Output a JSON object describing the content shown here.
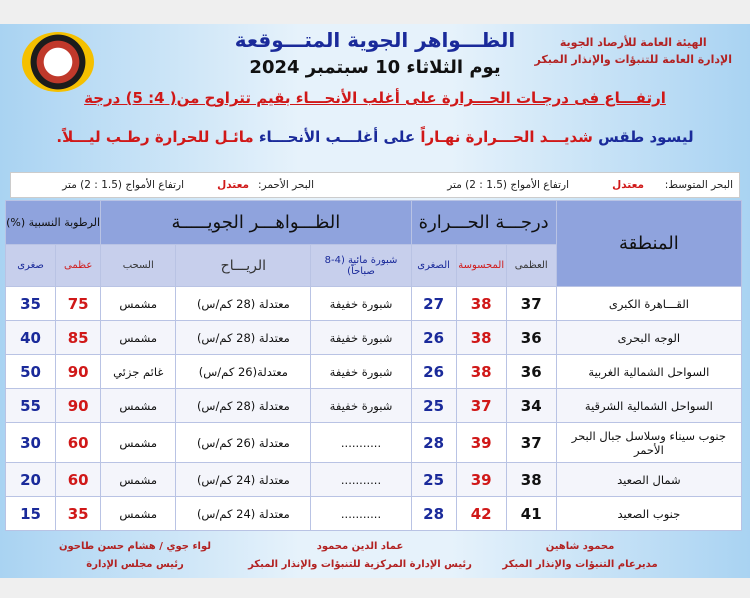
{
  "header": {
    "org_line1": "الهيئة العامة للأرصاد الجوية",
    "org_line2": "الإدارة العامة للتنبؤات والإنذار المبكر",
    "title": "الظـــواهر الجوية المتـــوقعة",
    "date": "يوم الثلاثاء 10 سبتمبر 2024",
    "headline": "ارتفـــاع فى درجـات الحـــرارة على أغلب الأنحـــاء بقيم تتراوح من( 4: 5) درجة",
    "summary_a": "ليسود طقس",
    "summary_b": "شديـــد الحـــرارة نهـاراً",
    "summary_c": "على أغلـــب الأنحـــاء",
    "summary_d": "مائـل للحرارة رطـب ليـــلاً."
  },
  "seas": {
    "med_label": "البحر المتوسط:",
    "med_state": "معتدل",
    "med_waves": "ارتفاع الأمواج (1.5 : 2) متر",
    "red_label": "البحر الأحمر:",
    "red_state": "معتدل",
    "red_waves": "ارتفاع الأمواج (1.5 : 2) متر"
  },
  "table": {
    "region": "المنطقة",
    "temp": "درجـــة الحـــرارة",
    "phenomena": "الظـــواهـــر الجويـــــة",
    "humidity": "الرطوبة النسبية (%)",
    "max": "العظمى",
    "felt": "المحسوسة",
    "min": "الصغرى",
    "fog": "شبورة مائية (4-8 صباحاً)",
    "wind": "الريـــاح",
    "clouds": "السحب",
    "h_max": "عظمى",
    "h_min": "صغرى",
    "rows": [
      {
        "region": "القـــاهرة الكبرى",
        "max": "37",
        "felt": "38",
        "min": "27",
        "fog": "شبورة خفيفة",
        "wind": "معتدلة (28 كم/س)",
        "clouds": "مشمس",
        "hmax": "75",
        "hmin": "35"
      },
      {
        "region": "الوجه البحرى",
        "max": "36",
        "felt": "38",
        "min": "26",
        "fog": "شبورة خفيفة",
        "wind": "معتدلة (28 كم/س)",
        "clouds": "مشمس",
        "hmax": "85",
        "hmin": "40"
      },
      {
        "region": "السواحل الشمالية الغربية",
        "max": "36",
        "felt": "38",
        "min": "26",
        "fog": "شبورة خفيفة",
        "wind": "معتدلة(26 كم/س)",
        "clouds": "غائم جزئي",
        "hmax": "90",
        "hmin": "50"
      },
      {
        "region": "السواحل الشمالية الشرقية",
        "max": "34",
        "felt": "37",
        "min": "25",
        "fog": "شبورة خفيفة",
        "wind": "معتدلة (28 كم/س)",
        "clouds": "مشمس",
        "hmax": "90",
        "hmin": "55"
      },
      {
        "region": "جنوب سيناء وسلاسل جبال البحر الأحمر",
        "max": "37",
        "felt": "39",
        "min": "28",
        "fog": "...........",
        "wind": "معتدلة (26 كم/س)",
        "clouds": "مشمس",
        "hmax": "60",
        "hmin": "30"
      },
      {
        "region": "شمال الصعيد",
        "max": "38",
        "felt": "39",
        "min": "25",
        "fog": "...........",
        "wind": "معتدلة (24 كم/س)",
        "clouds": "مشمس",
        "hmax": "60",
        "hmin": "20"
      },
      {
        "region": "جنوب الصعيد",
        "max": "41",
        "felt": "42",
        "min": "28",
        "fog": "...........",
        "wind": "معتدلة (24 كم/س)",
        "clouds": "مشمس",
        "hmax": "35",
        "hmin": "15"
      }
    ]
  },
  "signatures": [
    {
      "name": "محمود شاهين",
      "role": "مديرعام التنبؤات والإنذار المبكر"
    },
    {
      "name": "عماد الدين محمود",
      "role": "رئيس الإدارة المركزية للتنبؤات والإنذار المبكر"
    },
    {
      "name": "لواء جوي / هشام حسن طاحون",
      "role": "رئيس مجلس الإدارة"
    }
  ]
}
